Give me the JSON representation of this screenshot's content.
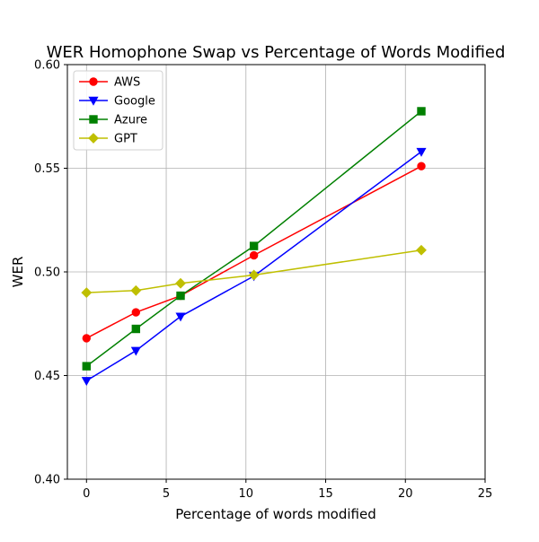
{
  "chart_data": {
    "type": "line",
    "title": "WER Homophone Swap vs Percentage of Words Modified",
    "xlabel": "Percentage of words modified",
    "ylabel": "WER",
    "xlim": [
      -1.2,
      25
    ],
    "ylim": [
      0.4,
      0.6
    ],
    "xticks": [
      0,
      5,
      10,
      15,
      20,
      25
    ],
    "yticks": [
      0.4,
      0.45,
      0.5,
      0.55,
      0.6
    ],
    "xtick_labels": [
      "0",
      "5",
      "10",
      "15",
      "20",
      "25"
    ],
    "ytick_labels": [
      "0.40",
      "0.45",
      "0.50",
      "0.55",
      "0.60"
    ],
    "grid": true,
    "legend_position": "top-left",
    "series": [
      {
        "name": "AWS",
        "color": "#ff0000",
        "marker": "circle",
        "x": [
          0,
          3.1,
          5.9,
          10.5,
          21
        ],
        "y": [
          0.468,
          0.4805,
          0.4885,
          0.508,
          0.551
        ]
      },
      {
        "name": "Google",
        "color": "#0000ff",
        "marker": "triangle-down",
        "x": [
          0,
          3.1,
          5.9,
          10.5,
          21
        ],
        "y": [
          0.4475,
          0.462,
          0.4785,
          0.498,
          0.558
        ]
      },
      {
        "name": "Azure",
        "color": "#008000",
        "marker": "square",
        "x": [
          0,
          3.1,
          5.9,
          10.5,
          21
        ],
        "y": [
          0.4545,
          0.4725,
          0.4885,
          0.5125,
          0.5775
        ]
      },
      {
        "name": "GPT",
        "color": "#bfbf00",
        "marker": "diamond",
        "x": [
          0,
          3.1,
          5.9,
          10.5,
          21
        ],
        "y": [
          0.49,
          0.491,
          0.4945,
          0.4985,
          0.5105
        ]
      }
    ]
  }
}
